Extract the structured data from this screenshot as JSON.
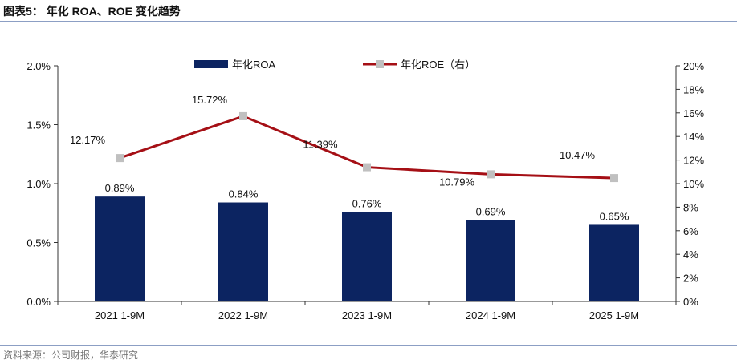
{
  "figure": {
    "title": "图表5：  年化 ROA、ROE 变化趋势",
    "source": "资料来源：公司财报，华泰研究"
  },
  "chart_data": {
    "type": "bar+line",
    "categories": [
      "2021 1-9M",
      "2022 1-9M",
      "2023 1-9M",
      "2024 1-9M",
      "2025 1-9M"
    ],
    "series": [
      {
        "name": "年化ROA",
        "type": "bar",
        "axis": "left",
        "values": [
          0.89,
          0.84,
          0.76,
          0.69,
          0.65
        ],
        "labels": [
          "0.89%",
          "0.84%",
          "0.76%",
          "0.69%",
          "0.65%"
        ],
        "color": "#0c2461"
      },
      {
        "name": "年化ROE（右）",
        "type": "line",
        "axis": "right",
        "values": [
          12.17,
          15.72,
          11.39,
          10.79,
          10.47
        ],
        "labels": [
          "12.17%",
          "15.72%",
          "11.39%",
          "10.79%",
          "10.47%"
        ],
        "color": "#a50f15",
        "marker_color": "#c0c0c0"
      }
    ],
    "y_left": {
      "ylim": [
        0,
        2.0
      ],
      "ticks": [
        "0.0%",
        "0.5%",
        "1.0%",
        "1.5%",
        "2.0%"
      ]
    },
    "y_right": {
      "ylim": [
        0,
        20
      ],
      "ticks": [
        "0%",
        "2%",
        "4%",
        "6%",
        "8%",
        "10%",
        "12%",
        "14%",
        "16%",
        "18%",
        "20%"
      ]
    },
    "legend_position": "top-center",
    "grid": false
  }
}
